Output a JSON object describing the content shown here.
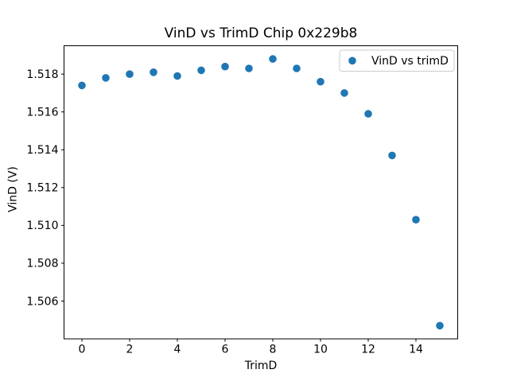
{
  "figure": {
    "background": "#ffffff"
  },
  "chart_data": {
    "type": "scatter",
    "title": "VinD vs TrimD Chip 0x229b8",
    "xlabel": "TrimD",
    "ylabel": "VinD (V)",
    "legend": {
      "label": "VinD vs trimD",
      "location": "upper right",
      "marker": "circle"
    },
    "marker_color": "#1f77b4",
    "axis_color": "#000000",
    "grid": false,
    "x": [
      0,
      1,
      2,
      3,
      4,
      5,
      6,
      7,
      8,
      9,
      10,
      11,
      12,
      13,
      14,
      15
    ],
    "y": [
      1.5174,
      1.5178,
      1.518,
      1.5181,
      1.5179,
      1.5182,
      1.5184,
      1.5183,
      1.5188,
      1.5183,
      1.5176,
      1.517,
      1.5159,
      1.5137,
      1.5103,
      1.5047
    ],
    "xlim": [
      -0.75,
      15.75
    ],
    "ylim": [
      1.504,
      1.5195
    ],
    "xticks": [
      0,
      2,
      4,
      6,
      8,
      10,
      12,
      14
    ],
    "xtick_labels": [
      "0",
      "2",
      "4",
      "6",
      "8",
      "10",
      "12",
      "14"
    ],
    "yticks": [
      1.506,
      1.508,
      1.51,
      1.512,
      1.514,
      1.516,
      1.518
    ],
    "ytick_labels": [
      "1.506",
      "1.508",
      "1.510",
      "1.512",
      "1.514",
      "1.516",
      "1.518"
    ]
  }
}
